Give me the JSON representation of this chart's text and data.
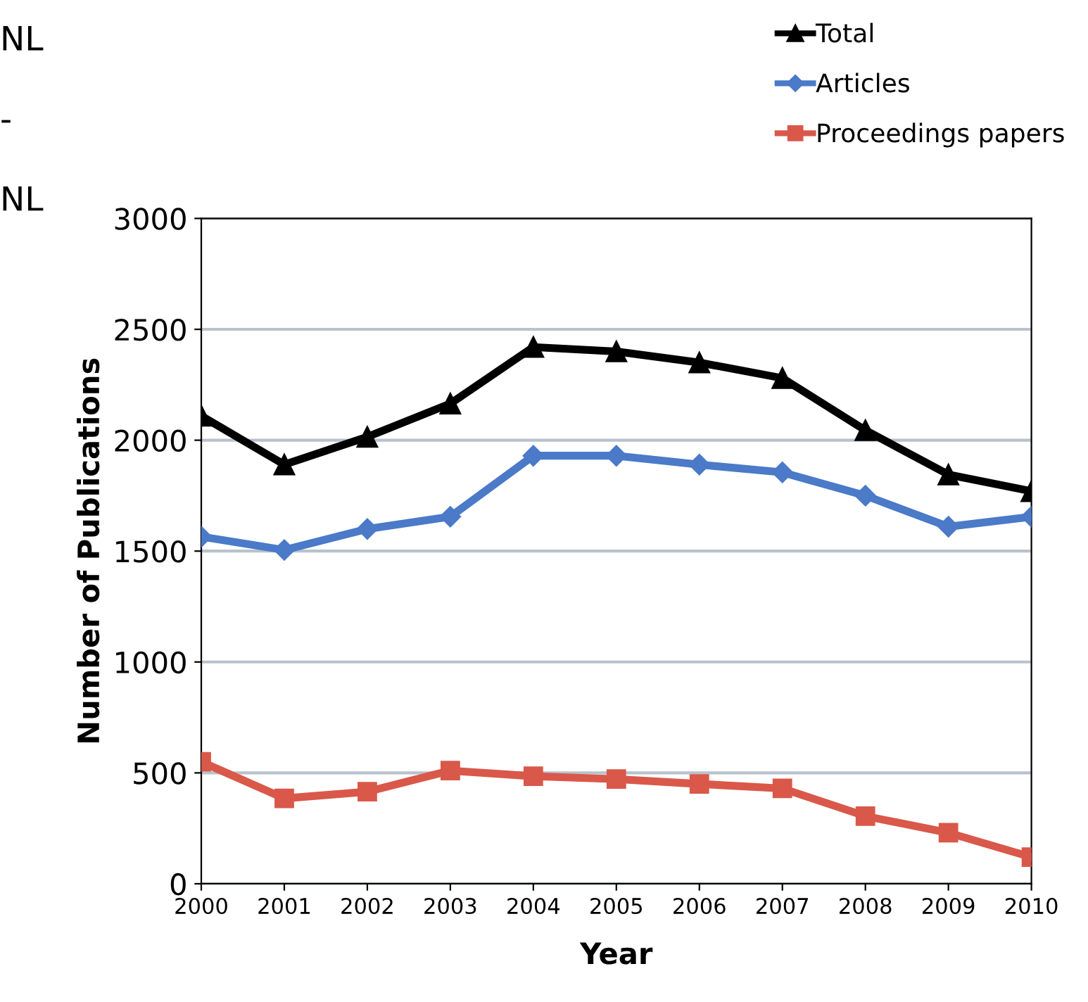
{
  "chart_data": {
    "type": "line",
    "xlabel": "Year",
    "ylabel": "Number of Publications",
    "x": [
      2000,
      2001,
      2002,
      2003,
      2004,
      2005,
      2006,
      2007,
      2008,
      2009,
      2010
    ],
    "series": [
      {
        "name": "Total",
        "color": "#000000",
        "marker": "triangle",
        "values": [
          2110,
          1890,
          2015,
          2165,
          2420,
          2400,
          2350,
          2280,
          2045,
          1845,
          1770
        ]
      },
      {
        "name": "Articles",
        "color": "#4a7ac8",
        "marker": "diamond",
        "values": [
          1565,
          1505,
          1600,
          1655,
          1930,
          1930,
          1890,
          1855,
          1750,
          1610,
          1655
        ]
      },
      {
        "name": "Proceedings papers",
        "color": "#d9584a",
        "marker": "square",
        "values": [
          550,
          385,
          415,
          510,
          485,
          472,
          450,
          430,
          305,
          230,
          120
        ]
      }
    ],
    "xlim": [
      2000,
      2010
    ],
    "xticks": [
      2000,
      2001,
      2002,
      2003,
      2004,
      2005,
      2006,
      2007,
      2008,
      2009,
      2010
    ],
    "ylim": [
      0,
      3000
    ],
    "yticks": [
      0,
      500,
      1000,
      1500,
      2000,
      2500,
      3000
    ],
    "grid": "y",
    "legend": "top right",
    "line_style": "solid",
    "annotations": [
      "NL",
      "-",
      "NL"
    ]
  }
}
